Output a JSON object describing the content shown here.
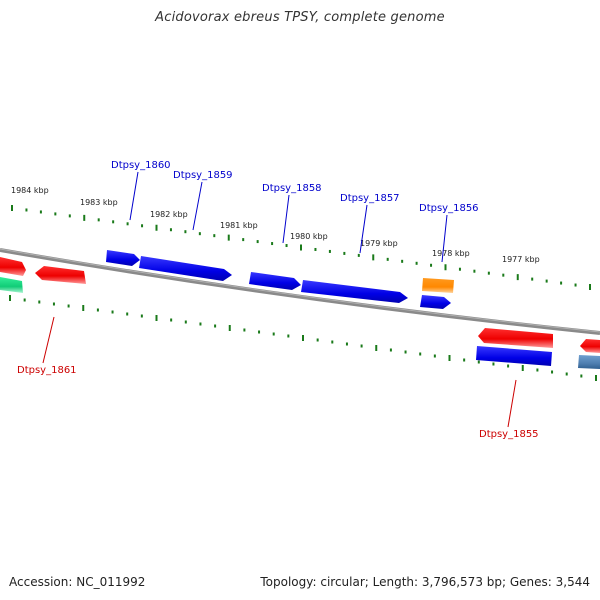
{
  "title": "Acidovorax ebreus TPSY, complete genome",
  "footer": {
    "accession": "Accession: NC_011992",
    "topology": "Topology: circular; Length: 3,796,573 bp; Genes: 3,544"
  },
  "colors": {
    "forward_gene": "#0000ee",
    "reverse_gene": "#ee0000",
    "orange_gene": "#ff8800",
    "green_gene": "#22dd88",
    "steel_gene": "#4f7fb0",
    "backbone": "#888888",
    "tick": "#1a7a1a",
    "forward_label": "#0000cc",
    "reverse_label": "#cc0000"
  },
  "scale_labels": [
    "1984 kbp",
    "1983 kbp",
    "1982 kbp",
    "1981 kbp",
    "1980 kbp",
    "1979 kbp",
    "1978 kbp",
    "1977 kbp"
  ],
  "gene_labels": [
    {
      "name": "Dtpsy_1860",
      "strand": "forward"
    },
    {
      "name": "Dtpsy_1859",
      "strand": "forward"
    },
    {
      "name": "Dtpsy_1858",
      "strand": "forward"
    },
    {
      "name": "Dtpsy_1857",
      "strand": "forward"
    },
    {
      "name": "Dtpsy_1856",
      "strand": "forward"
    },
    {
      "name": "Dtpsy_1861",
      "strand": "reverse"
    },
    {
      "name": "Dtpsy_1855",
      "strand": "reverse"
    }
  ]
}
